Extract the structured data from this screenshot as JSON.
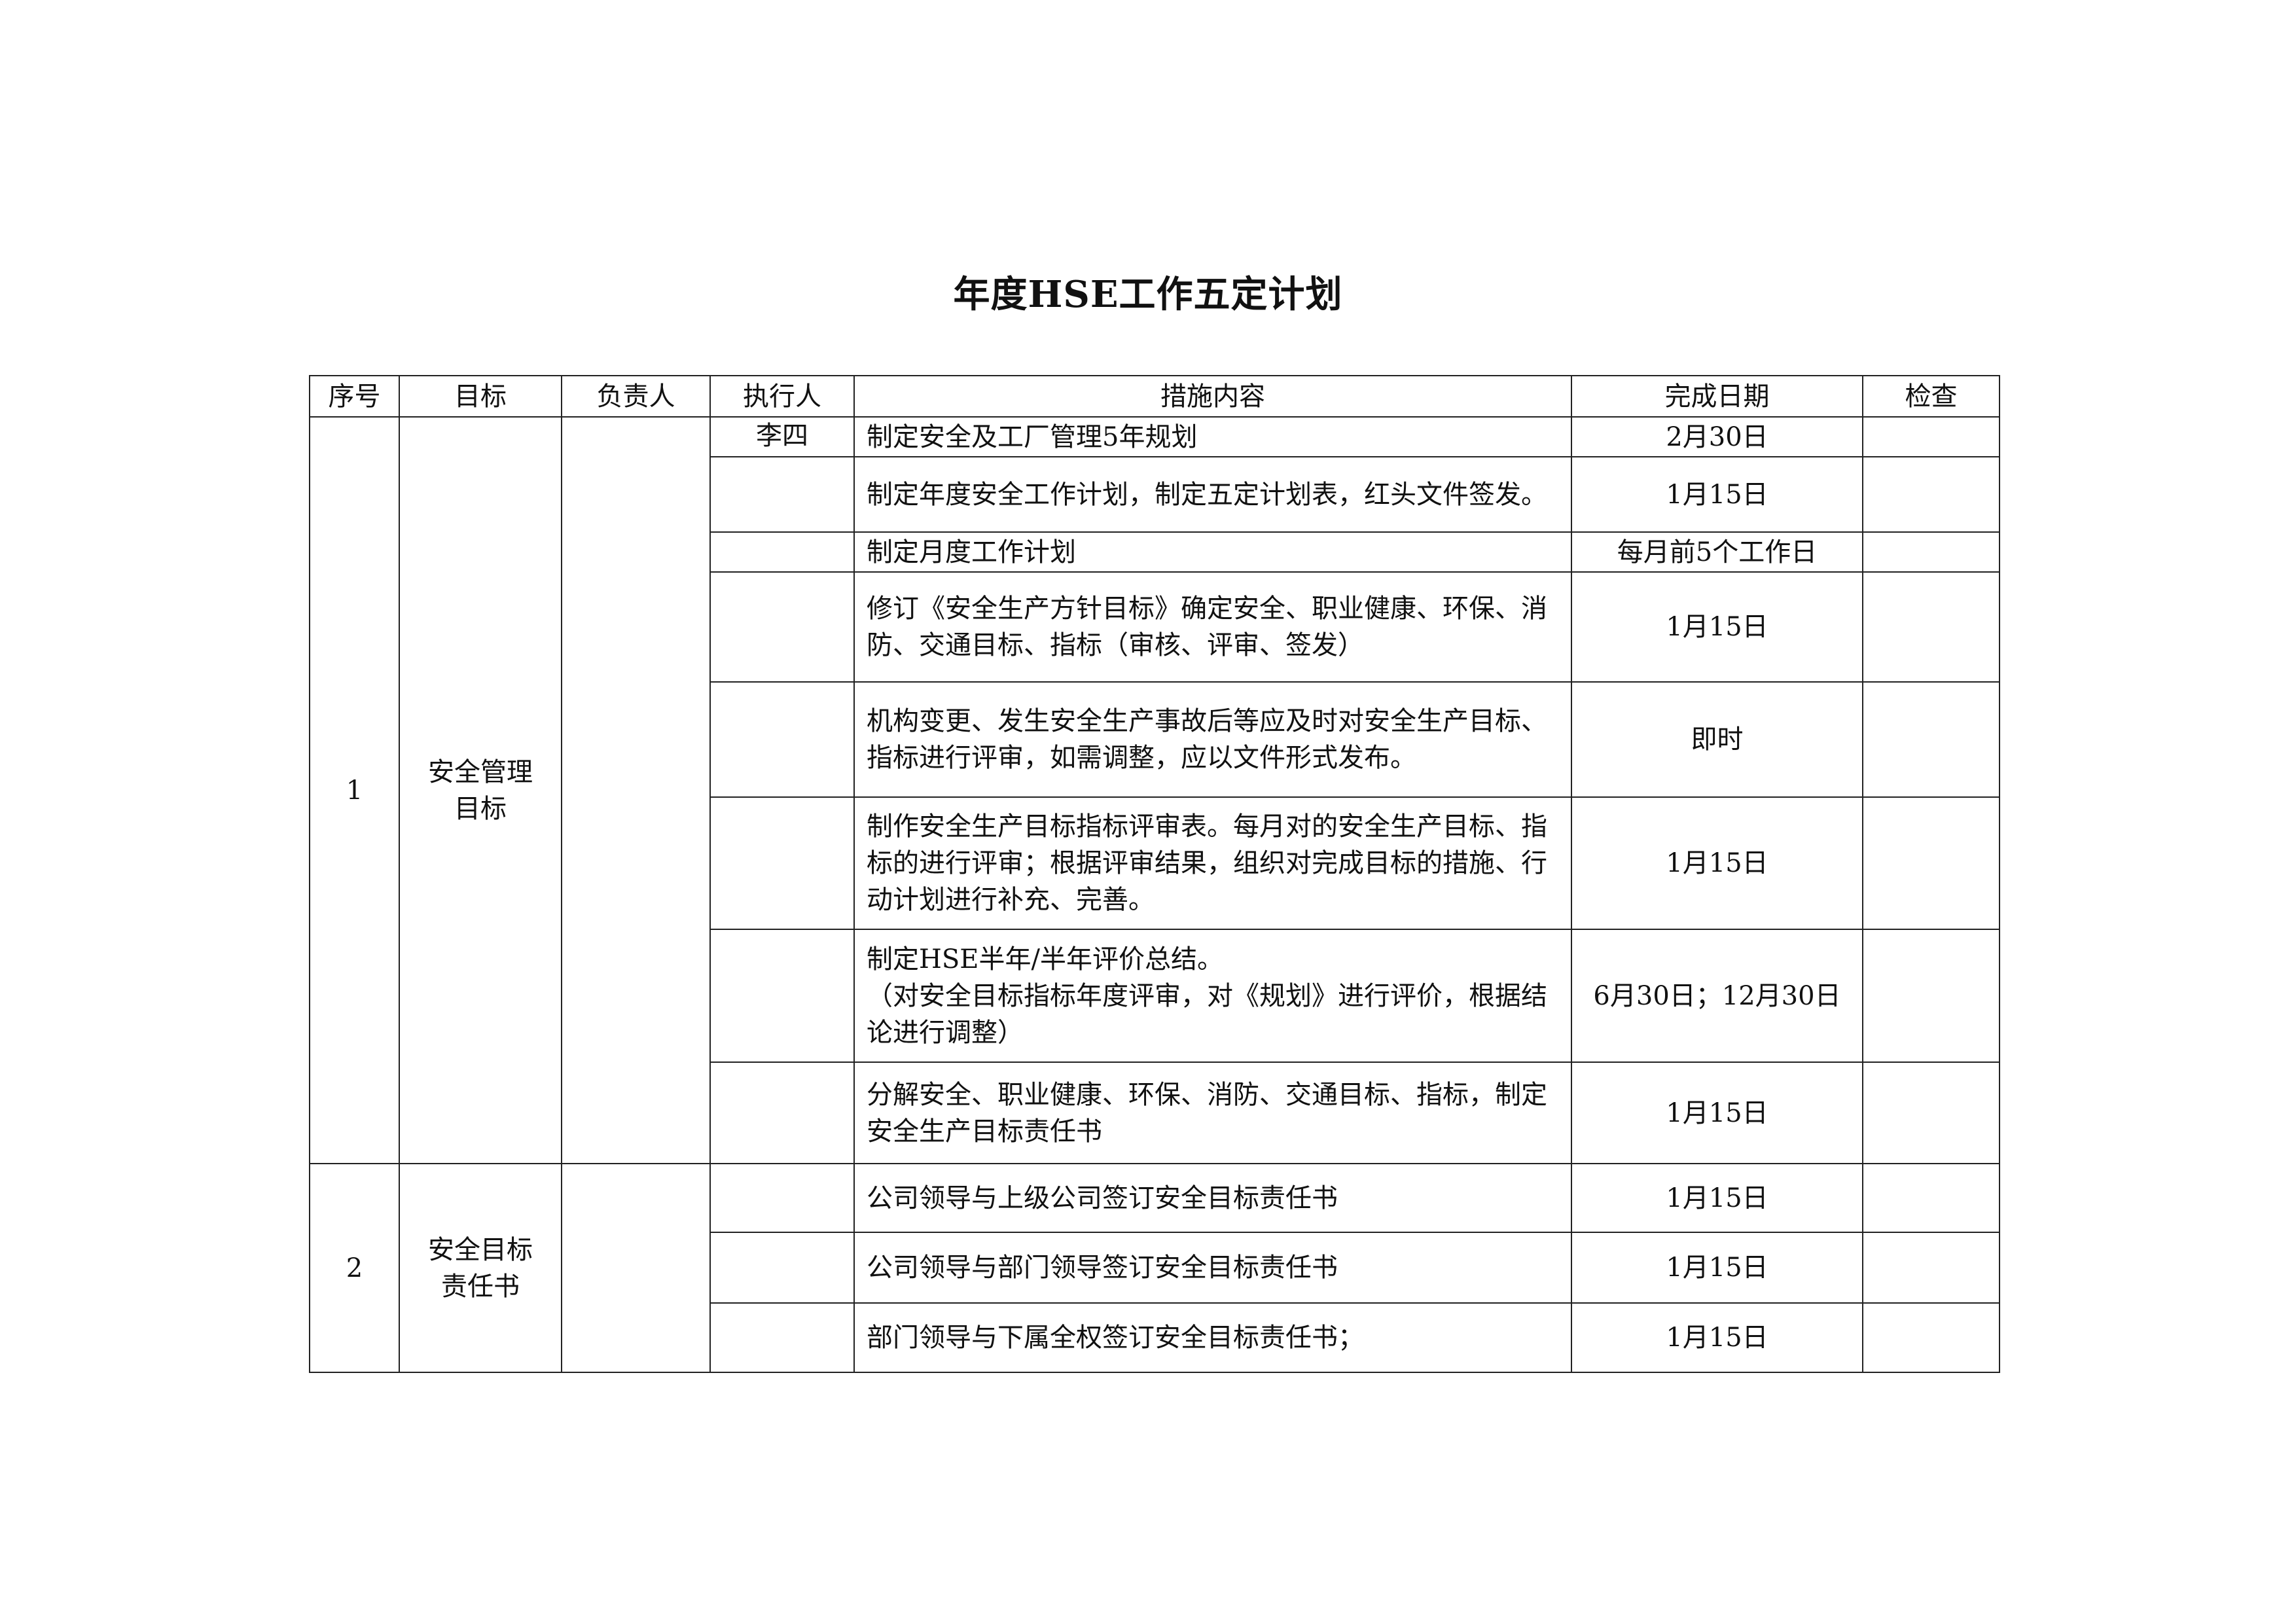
{
  "document": {
    "title": "年度HSE工作五定计划"
  },
  "table": {
    "headers": [
      "序号",
      "目标",
      "负责人",
      "执行人",
      "措施内容",
      "完成日期",
      "检查"
    ],
    "sections": [
      {
        "seq": "1",
        "goal": "安全管理目标",
        "responsible": "",
        "rows": [
          {
            "executor": "李四",
            "measure": "制定安全及工厂管理5年规划",
            "date": "2月30日",
            "check": ""
          },
          {
            "executor": "",
            "measure": "制定年度安全工作计划，制定五定计划表，红头文件签发。",
            "date": "1月15日",
            "check": ""
          },
          {
            "executor": "",
            "measure": "制定月度工作计划",
            "date": "每月前5个工作日",
            "check": ""
          },
          {
            "executor": "",
            "measure": "修订《安全生产方针目标》确定安全、职业健康、环保、消防、交通目标、指标（审核、评审、签发）",
            "date": "1月15日",
            "check": ""
          },
          {
            "executor": "",
            "measure": "机构变更、发生安全生产事故后等应及时对安全生产目标、指标进行评审，如需调整，应以文件形式发布。",
            "date": "即时",
            "check": ""
          },
          {
            "executor": "",
            "measure": "制作安全生产目标指标评审表。每月对的安全生产目标、指标的进行评审；根据评审结果，组织对完成目标的措施、行动计划进行补充、完善。",
            "date": "1月15日",
            "check": ""
          },
          {
            "executor": "",
            "measure": "制定HSE半年/半年评价总结。\n（对安全目标指标年度评审，对《规划》进行评价，根据结论进行调整）",
            "date": "6月30日；12月30日",
            "check": ""
          },
          {
            "executor": "",
            "measure": "分解安全、职业健康、环保、消防、交通目标、指标，制定安全生产目标责任书",
            "date": "1月15日",
            "check": ""
          }
        ]
      },
      {
        "seq": "2",
        "goal": "安全目标责任书",
        "responsible": "",
        "rows": [
          {
            "executor": "",
            "measure": "公司领导与上级公司签订安全目标责任书",
            "date": "1月15日",
            "check": ""
          },
          {
            "executor": "",
            "measure": "公司领导与部门领导签订安全目标责任书",
            "date": "1月15日",
            "check": ""
          },
          {
            "executor": "",
            "measure": "部门领导与下属全权签订安全目标责任书；",
            "date": "1月15日",
            "check": ""
          }
        ]
      }
    ]
  }
}
